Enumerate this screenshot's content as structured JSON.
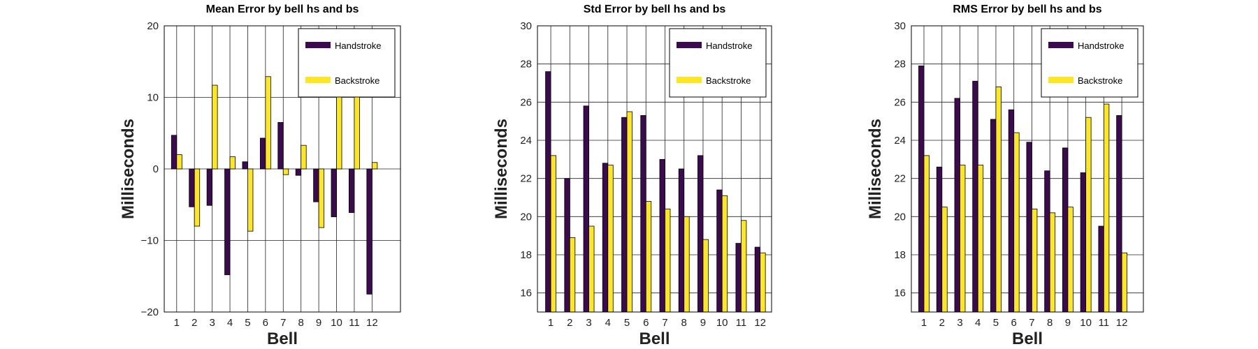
{
  "colors": {
    "handstroke": "#3b0a4f",
    "backstroke": "#fde725"
  },
  "chart_data": [
    {
      "type": "bar",
      "title": "Mean Error by bell hs and bs",
      "xlabel": "Bell",
      "ylabel": "Milliseconds",
      "categories": [
        "1",
        "2",
        "3",
        "4",
        "5",
        "6",
        "7",
        "8",
        "9",
        "10",
        "11",
        "12"
      ],
      "ylim": [
        -20,
        20
      ],
      "xlim": [
        0.3,
        13.6
      ],
      "yticks": [
        -20,
        -10,
        0,
        10,
        20
      ],
      "ytick_labels": [
        "−20",
        "−10",
        "0",
        "10",
        "20"
      ],
      "grid": true,
      "legend_position": "top-right",
      "series": [
        {
          "name": "Handstroke",
          "values": [
            4.7,
            -5.3,
            -5.1,
            -14.8,
            1.0,
            4.3,
            6.5,
            -0.9,
            -4.6,
            -6.7,
            -6.1,
            -17.5
          ]
        },
        {
          "name": "Backstroke",
          "values": [
            2.0,
            -8.0,
            11.7,
            1.7,
            -8.7,
            12.9,
            -0.8,
            3.3,
            -8.2,
            13.9,
            16.8,
            0.9
          ]
        }
      ]
    },
    {
      "type": "bar",
      "title": "Std Error by bell hs and bs",
      "xlabel": "Bell",
      "ylabel": "Milliseconds",
      "categories": [
        "1",
        "2",
        "3",
        "4",
        "5",
        "6",
        "7",
        "8",
        "9",
        "10",
        "11",
        "12"
      ],
      "ylim": [
        15,
        30
      ],
      "xlim": [
        0.3,
        12.6
      ],
      "yticks": [
        16,
        18,
        20,
        22,
        24,
        26,
        28,
        30
      ],
      "ytick_labels": [
        "16",
        "18",
        "20",
        "22",
        "24",
        "26",
        "28",
        "30"
      ],
      "grid": true,
      "legend_position": "top-right",
      "series": [
        {
          "name": "Handstroke",
          "values": [
            27.6,
            22.0,
            25.8,
            22.8,
            25.2,
            25.3,
            23.0,
            22.5,
            23.2,
            21.4,
            18.6,
            18.4
          ]
        },
        {
          "name": "Backstroke",
          "values": [
            23.2,
            18.9,
            19.5,
            22.7,
            25.5,
            20.8,
            20.4,
            20.0,
            18.8,
            21.1,
            19.8,
            18.1
          ]
        }
      ]
    },
    {
      "type": "bar",
      "title": "RMS Error by bell hs and bs",
      "xlabel": "Bell",
      "ylabel": "Milliseconds",
      "categories": [
        "1",
        "2",
        "3",
        "4",
        "5",
        "6",
        "7",
        "8",
        "9",
        "10",
        "11",
        "12"
      ],
      "ylim": [
        15,
        30
      ],
      "xlim": [
        0.3,
        13.2
      ],
      "yticks": [
        16,
        18,
        20,
        22,
        24,
        26,
        28,
        30
      ],
      "ytick_labels": [
        "16",
        "18",
        "20",
        "22",
        "24",
        "26",
        "28",
        "30"
      ],
      "grid": true,
      "legend_position": "top-right",
      "series": [
        {
          "name": "Handstroke",
          "values": [
            27.9,
            22.6,
            26.2,
            27.1,
            25.1,
            25.6,
            23.9,
            22.4,
            23.6,
            22.3,
            19.5,
            25.3
          ]
        },
        {
          "name": "Backstroke",
          "values": [
            23.2,
            20.5,
            22.7,
            22.7,
            26.8,
            24.4,
            20.4,
            20.2,
            20.5,
            25.2,
            25.9,
            18.1
          ]
        }
      ]
    }
  ]
}
